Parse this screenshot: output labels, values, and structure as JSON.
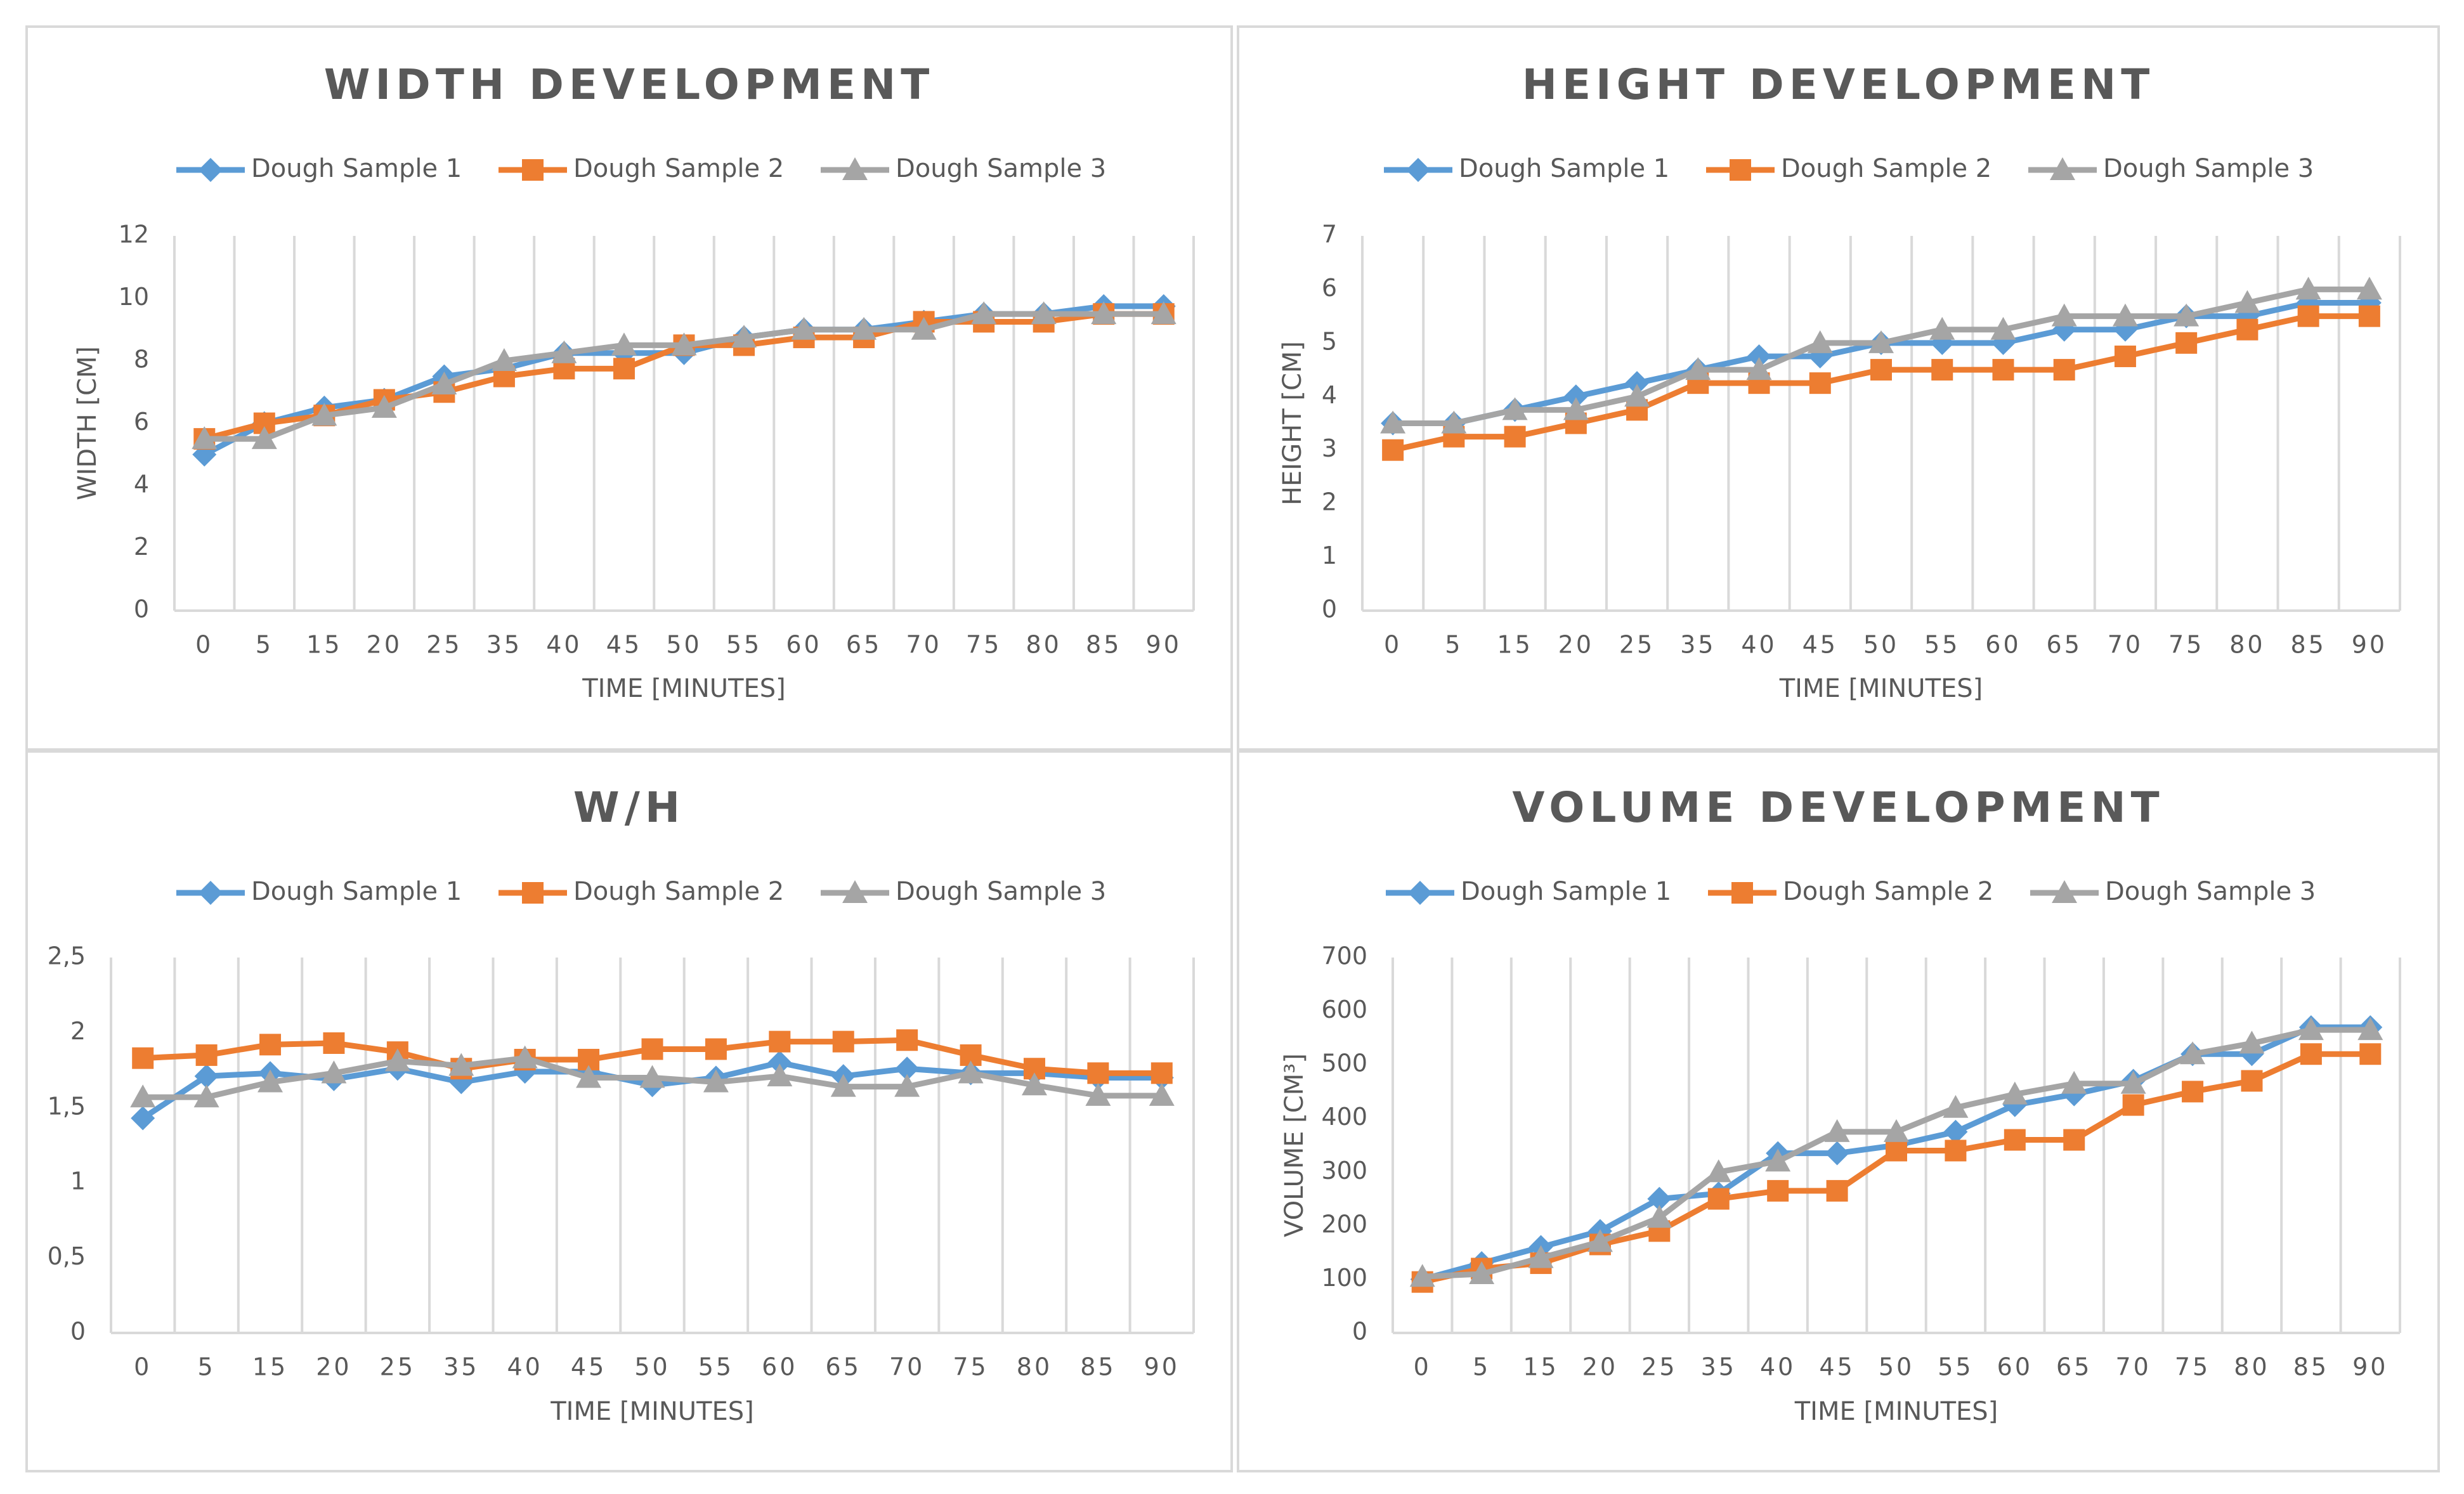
{
  "colors": {
    "series1": "#5b9bd5",
    "series2": "#ed7d31",
    "series3": "#a5a5a5",
    "text": "#595959",
    "grid": "#d9d9d9",
    "border": "#d9d9d9"
  },
  "chart_data": [
    {
      "type": "line",
      "title": "WIDTH DEVELOPMENT",
      "xlabel": "TIME [MINUTES]",
      "ylabel": "WIDTH [CM]",
      "categories": [
        "0",
        "5",
        "15",
        "20",
        "25",
        "35",
        "40",
        "45",
        "50",
        "55",
        "60",
        "65",
        "70",
        "75",
        "80",
        "85",
        "90"
      ],
      "yticks": [
        "0",
        "2",
        "4",
        "6",
        "8",
        "10",
        "12"
      ],
      "ylim": [
        0,
        12
      ],
      "grid": "vertical",
      "legend": "top",
      "series": [
        {
          "name": "Dough Sample 1",
          "marker": "diamond",
          "values": [
            5,
            6,
            6.5,
            6.75,
            7.5,
            7.75,
            8.25,
            8.25,
            8.25,
            8.75,
            9,
            9,
            9.25,
            9.5,
            9.5,
            9.75,
            9.75
          ]
        },
        {
          "name": "Dough Sample 2",
          "marker": "square",
          "values": [
            5.5,
            6,
            6.25,
            6.75,
            7,
            7.5,
            7.75,
            7.75,
            8.5,
            8.5,
            8.75,
            8.75,
            9.25,
            9.25,
            9.25,
            9.5,
            9.5
          ]
        },
        {
          "name": "Dough Sample 3",
          "marker": "triangle",
          "values": [
            5.5,
            5.5,
            6.25,
            6.5,
            7.25,
            8,
            8.25,
            8.5,
            8.5,
            8.75,
            9,
            9,
            9,
            9.5,
            9.5,
            9.5,
            9.5
          ]
        }
      ]
    },
    {
      "type": "line",
      "title": "HEIGHT DEVELOPMENT",
      "xlabel": "TIME [MINUTES]",
      "ylabel": "HEIGHT [CM]",
      "categories": [
        "0",
        "5",
        "15",
        "20",
        "25",
        "35",
        "40",
        "45",
        "50",
        "55",
        "60",
        "65",
        "70",
        "75",
        "80",
        "85",
        "90"
      ],
      "yticks": [
        "0",
        "1",
        "2",
        "3",
        "4",
        "5",
        "6",
        "7"
      ],
      "ylim": [
        0,
        7
      ],
      "grid": "vertical",
      "legend": "top",
      "series": [
        {
          "name": "Dough Sample 1",
          "marker": "diamond",
          "values": [
            3.5,
            3.5,
            3.75,
            4,
            4.25,
            4.5,
            4.75,
            4.75,
            5,
            5,
            5,
            5.25,
            5.25,
            5.5,
            5.5,
            5.75,
            5.75
          ]
        },
        {
          "name": "Dough Sample 2",
          "marker": "square",
          "values": [
            3,
            3.25,
            3.25,
            3.5,
            3.75,
            4.25,
            4.25,
            4.25,
            4.5,
            4.5,
            4.5,
            4.5,
            4.75,
            5,
            5.25,
            5.5,
            5.5
          ]
        },
        {
          "name": "Dough Sample 3",
          "marker": "triangle",
          "values": [
            3.5,
            3.5,
            3.75,
            3.75,
            4,
            4.5,
            4.5,
            5,
            5,
            5.25,
            5.25,
            5.5,
            5.5,
            5.5,
            5.75,
            6,
            6
          ]
        }
      ]
    },
    {
      "type": "line",
      "title": "W/H",
      "xlabel": "TIME [MINUTES]",
      "ylabel": "",
      "categories": [
        "0",
        "5",
        "15",
        "20",
        "25",
        "35",
        "40",
        "45",
        "50",
        "55",
        "60",
        "65",
        "70",
        "75",
        "80",
        "85",
        "90"
      ],
      "yticks": [
        "0",
        "0,5",
        "1",
        "1,5",
        "2",
        "2,5"
      ],
      "ylim": [
        0,
        2.5
      ],
      "grid": "vertical",
      "legend": "top",
      "series": [
        {
          "name": "Dough Sample 1",
          "marker": "diamond",
          "values": [
            1.43,
            1.71,
            1.73,
            1.69,
            1.76,
            1.67,
            1.74,
            1.74,
            1.65,
            1.7,
            1.8,
            1.71,
            1.76,
            1.73,
            1.73,
            1.7,
            1.7
          ]
        },
        {
          "name": "Dough Sample 2",
          "marker": "square",
          "values": [
            1.83,
            1.85,
            1.92,
            1.93,
            1.87,
            1.76,
            1.82,
            1.82,
            1.89,
            1.89,
            1.94,
            1.94,
            1.95,
            1.85,
            1.76,
            1.73,
            1.73
          ]
        },
        {
          "name": "Dough Sample 3",
          "marker": "triangle",
          "values": [
            1.57,
            1.57,
            1.67,
            1.73,
            1.81,
            1.78,
            1.83,
            1.7,
            1.7,
            1.67,
            1.71,
            1.64,
            1.64,
            1.73,
            1.65,
            1.58,
            1.58
          ]
        }
      ]
    },
    {
      "type": "line",
      "title": "VOLUME DEVELOPMENT",
      "xlabel": "TIME [MINUTES]",
      "ylabel": "VOLUME [CM³]",
      "categories": [
        "0",
        "5",
        "15",
        "20",
        "25",
        "35",
        "40",
        "45",
        "50",
        "55",
        "60",
        "65",
        "70",
        "75",
        "80",
        "85",
        "90"
      ],
      "yticks": [
        "0",
        "100",
        "200",
        "300",
        "400",
        "500",
        "600",
        "700"
      ],
      "ylim": [
        0,
        700
      ],
      "grid": "vertical",
      "legend": "top",
      "series": [
        {
          "name": "Dough Sample 1",
          "marker": "diamond",
          "values": [
            100,
            130,
            160,
            190,
            250,
            260,
            335,
            335,
            350,
            375,
            425,
            445,
            470,
            520,
            520,
            570,
            570
          ]
        },
        {
          "name": "Dough Sample 2",
          "marker": "square",
          "values": [
            95,
            120,
            130,
            165,
            190,
            250,
            265,
            265,
            340,
            340,
            360,
            360,
            425,
            450,
            470,
            520,
            520
          ]
        },
        {
          "name": "Dough Sample 3",
          "marker": "triangle",
          "values": [
            105,
            110,
            140,
            170,
            215,
            300,
            320,
            375,
            375,
            420,
            445,
            465,
            465,
            520,
            540,
            565,
            565
          ]
        }
      ]
    }
  ]
}
